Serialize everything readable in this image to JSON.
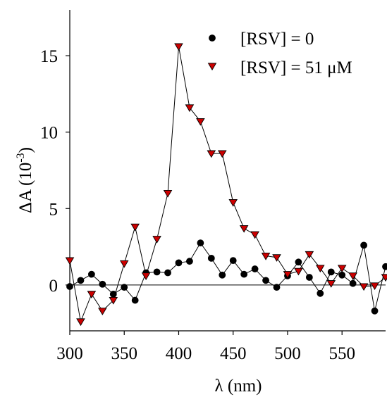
{
  "chart_data": {
    "type": "line",
    "xlabel": "λ (nm)",
    "ylabel_main": "ΔA (10",
    "ylabel_exp": "-3",
    "ylabel_close": ")",
    "xlim": [
      300,
      590
    ],
    "ylim": [
      -3,
      18
    ],
    "x_ticks": [
      300,
      350,
      400,
      450,
      500,
      550
    ],
    "y_ticks": [
      0,
      5,
      10,
      15
    ],
    "x_tick_labels": [
      "300",
      "350",
      "400",
      "450",
      "500",
      "550"
    ],
    "y_tick_labels": [
      "0",
      "5",
      "10",
      "15"
    ],
    "grid": false,
    "zero_line": true,
    "legend_position": "top-right",
    "x": [
      300,
      310,
      320,
      330,
      340,
      350,
      360,
      370,
      380,
      390,
      400,
      410,
      420,
      430,
      440,
      450,
      460,
      470,
      480,
      490,
      500,
      510,
      520,
      530,
      540,
      550,
      560,
      570,
      580,
      590
    ],
    "series": [
      {
        "name": "[RSV] = 0",
        "marker": "circle",
        "color": "#000000",
        "values": [
          -0.1,
          0.3,
          0.7,
          0.05,
          -0.6,
          -0.15,
          -1.0,
          0.8,
          0.85,
          0.8,
          1.45,
          1.55,
          2.75,
          1.75,
          0.65,
          1.6,
          0.7,
          1.05,
          0.3,
          -0.15,
          0.6,
          1.5,
          0.5,
          -0.55,
          0.85,
          0.65,
          0.1,
          2.6,
          -1.7,
          1.2
        ]
      },
      {
        "name": "[RSV] = 51 μM",
        "marker": "triangle-down",
        "color": "#cc0000",
        "values": [
          1.6,
          -2.4,
          -0.6,
          -1.7,
          -1.0,
          1.4,
          3.8,
          0.6,
          3.0,
          6.0,
          15.6,
          11.6,
          10.7,
          8.6,
          8.6,
          5.4,
          3.7,
          3.3,
          1.9,
          1.8,
          0.7,
          0.9,
          2.0,
          1.1,
          0.1,
          1.1,
          0.6,
          -0.1,
          -0.05,
          0.5
        ]
      }
    ]
  }
}
